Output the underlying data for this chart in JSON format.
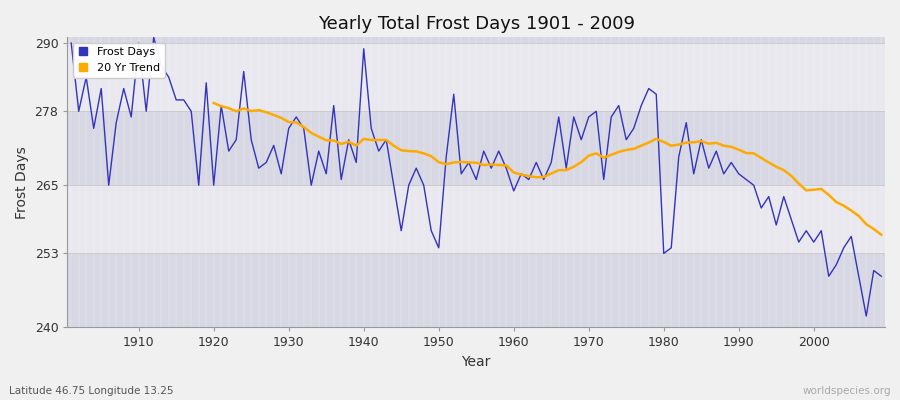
{
  "title": "Yearly Total Frost Days 1901 - 2009",
  "xlabel": "Year",
  "ylabel": "Frost Days",
  "subtitle": "Latitude 46.75 Longitude 13.25",
  "watermark": "worldspecies.org",
  "years": [
    1901,
    1902,
    1903,
    1904,
    1905,
    1906,
    1907,
    1908,
    1909,
    1910,
    1911,
    1912,
    1913,
    1914,
    1915,
    1916,
    1917,
    1918,
    1919,
    1920,
    1921,
    1922,
    1923,
    1924,
    1925,
    1926,
    1927,
    1928,
    1929,
    1930,
    1931,
    1932,
    1933,
    1934,
    1935,
    1936,
    1937,
    1938,
    1939,
    1940,
    1941,
    1942,
    1943,
    1944,
    1945,
    1946,
    1947,
    1948,
    1949,
    1950,
    1951,
    1952,
    1953,
    1954,
    1955,
    1956,
    1957,
    1958,
    1959,
    1960,
    1961,
    1962,
    1963,
    1964,
    1965,
    1966,
    1967,
    1968,
    1969,
    1970,
    1971,
    1972,
    1973,
    1974,
    1975,
    1976,
    1977,
    1978,
    1979,
    1980,
    1981,
    1982,
    1983,
    1984,
    1985,
    1986,
    1987,
    1988,
    1989,
    1990,
    1991,
    1992,
    1993,
    1994,
    1995,
    1996,
    1997,
    1998,
    1999,
    2000,
    2001,
    2002,
    2003,
    2004,
    2005,
    2006,
    2007,
    2008,
    2009
  ],
  "frost_days": [
    290,
    278,
    284,
    275,
    282,
    265,
    276,
    282,
    277,
    290,
    278,
    291,
    286,
    284,
    280,
    280,
    278,
    265,
    283,
    265,
    279,
    271,
    273,
    285,
    273,
    268,
    269,
    272,
    267,
    275,
    277,
    275,
    265,
    271,
    267,
    279,
    266,
    273,
    269,
    289,
    275,
    271,
    273,
    265,
    257,
    265,
    268,
    265,
    257,
    254,
    270,
    281,
    267,
    269,
    266,
    271,
    268,
    271,
    268,
    264,
    267,
    266,
    269,
    266,
    269,
    277,
    268,
    277,
    273,
    277,
    278,
    266,
    277,
    279,
    273,
    275,
    279,
    282,
    281,
    253,
    254,
    270,
    276,
    267,
    273,
    268,
    271,
    267,
    269,
    267,
    266,
    265,
    261,
    263,
    258,
    263,
    259,
    255,
    257,
    255,
    257,
    249,
    251,
    254,
    256,
    249,
    242,
    250,
    249
  ],
  "line_color": "#3333bb",
  "trend_color": "#ffaa00",
  "bg_color": "#f0f0f0",
  "plot_bg_color": "#f0f0f4",
  "band_color_light": "#e8e8ee",
  "band_color_dark": "#d8d8e4",
  "ylim": [
    240,
    291
  ],
  "yticks": [
    240,
    253,
    265,
    278,
    290
  ],
  "xticks": [
    1910,
    1920,
    1930,
    1940,
    1950,
    1960,
    1970,
    1980,
    1990,
    2000
  ],
  "trend_window": 20
}
